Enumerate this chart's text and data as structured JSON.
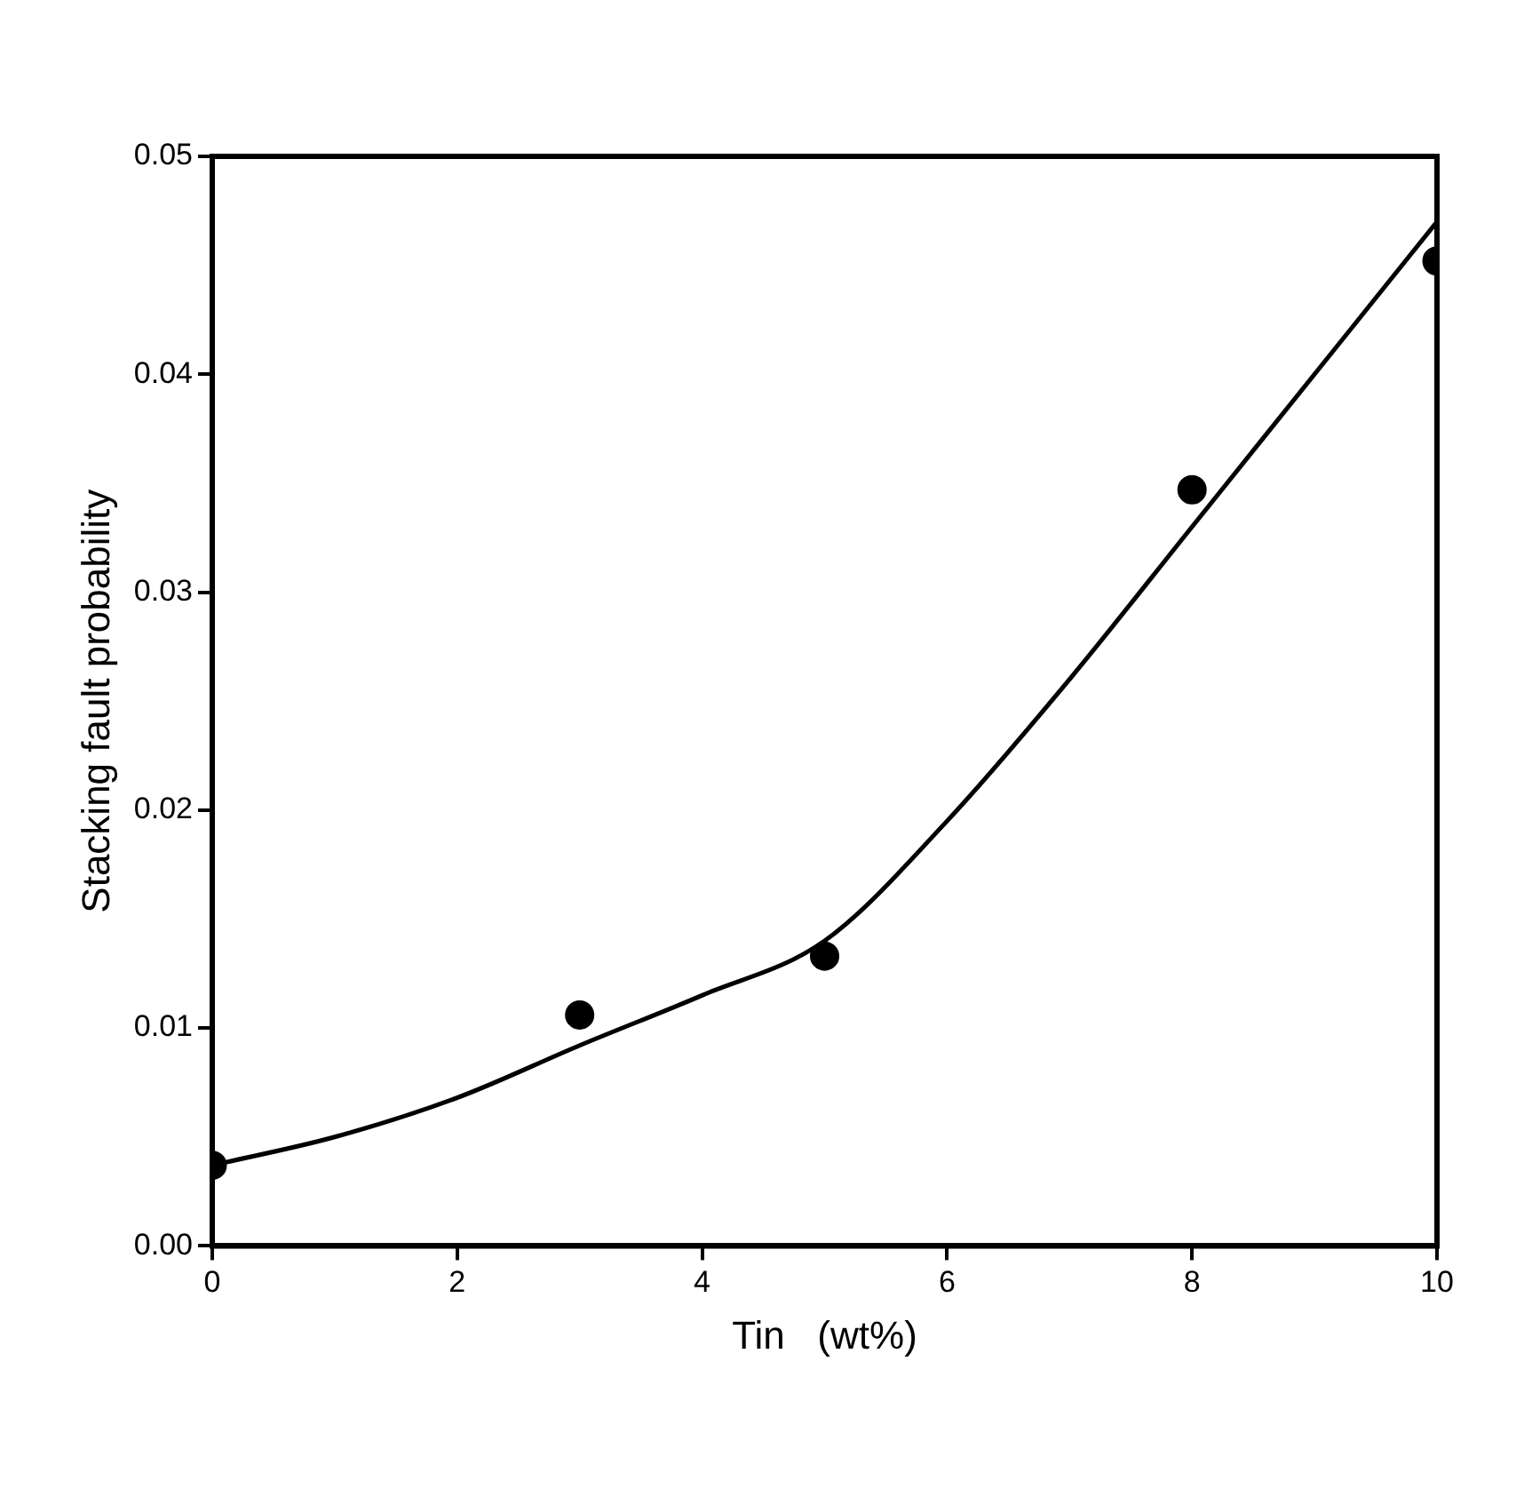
{
  "chart_data": {
    "type": "scatter",
    "xlabel": "Tin   (wt%)",
    "ylabel": "Stacking fault probability",
    "series": [
      {
        "color": "#000000",
        "marker": "circle",
        "x": [
          0,
          3,
          5,
          8,
          10
        ],
        "values": [
          0.0037,
          0.0106,
          0.0133,
          0.0347,
          0.0452
        ]
      },
      {
        "type": "line",
        "color": "#000000",
        "marker": "none",
        "x": [
          0,
          1,
          2,
          3,
          4,
          5,
          6,
          7,
          8,
          9,
          10
        ],
        "values": [
          0.0037,
          0.005,
          0.0068,
          0.0092,
          0.0115,
          0.014,
          0.0195,
          0.026,
          0.033,
          0.04,
          0.047
        ]
      }
    ],
    "xlim": [
      0,
      10
    ],
    "xticks": [
      0,
      2,
      4,
      6,
      8,
      10
    ],
    "ylim": [
      0,
      0.05
    ],
    "yticks": [
      {
        "value": 0,
        "label": "0.00"
      },
      {
        "value": 0.01,
        "label": "0.01"
      },
      {
        "value": 0.02,
        "label": "0.02"
      },
      {
        "value": 0.03,
        "label": "0.03"
      },
      {
        "value": 0.04,
        "label": "0.04"
      },
      {
        "value": 0.05,
        "label": "0.05"
      }
    ],
    "grid": false,
    "legend": false
  }
}
